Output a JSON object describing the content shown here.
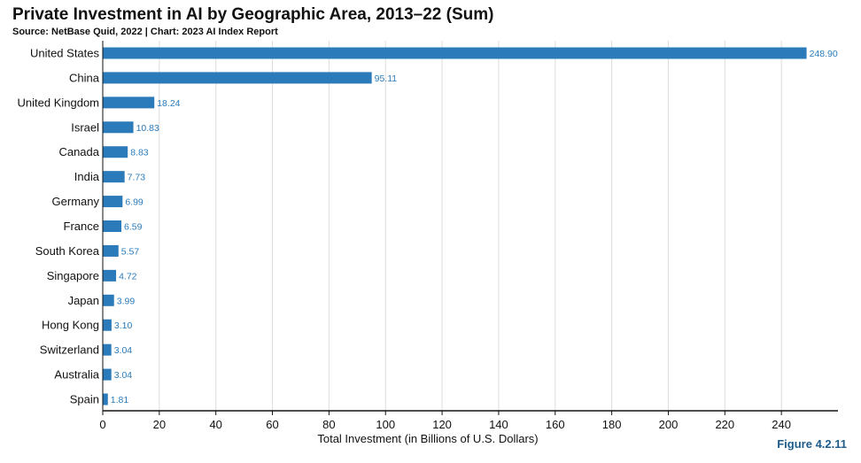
{
  "header": {
    "title": "Private Investment in AI by Geographic Area, 2013–22 (Sum)",
    "subtitle": "Source: NetBase Quid, 2022 | Chart: 2023 AI Index Report",
    "figure_label": "Figure 4.2.11"
  },
  "colors": {
    "bar": "#2b7bba",
    "value_label": "#2b7bba",
    "grid": "#dcdcdc",
    "axis": "#111111"
  },
  "chart_data": {
    "type": "bar",
    "orientation": "horizontal",
    "title": "Private Investment in AI by Geographic Area, 2013–22 (Sum)",
    "xlabel": "Total Investment (in Billions of U.S. Dollars)",
    "ylabel": "",
    "xlim": [
      0,
      260
    ],
    "x_ticks": [
      0,
      20,
      40,
      60,
      80,
      100,
      120,
      140,
      160,
      180,
      200,
      220,
      240
    ],
    "grid": "vertical",
    "categories": [
      "United States",
      "China",
      "United Kingdom",
      "Israel",
      "Canada",
      "India",
      "Germany",
      "France",
      "South Korea",
      "Singapore",
      "Japan",
      "Hong Kong",
      "Switzerland",
      "Australia",
      "Spain"
    ],
    "values": [
      248.9,
      95.11,
      18.24,
      10.83,
      8.83,
      7.73,
      6.99,
      6.59,
      5.57,
      4.72,
      3.99,
      3.1,
      3.04,
      3.04,
      1.81
    ],
    "value_labels": [
      "248.90",
      "95.11",
      "18.24",
      "10.83",
      "8.83",
      "7.73",
      "6.99",
      "6.59",
      "5.57",
      "4.72",
      "3.99",
      "3.10",
      "3.04",
      "3.04",
      "1.81"
    ]
  }
}
